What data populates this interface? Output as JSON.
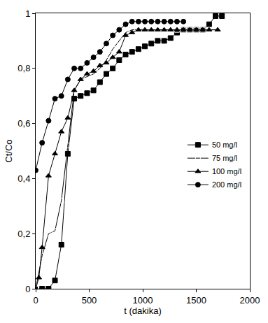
{
  "chart_data": {
    "type": "line",
    "x_label": "t (dakika)",
    "y_label": "Ct/Co",
    "xlim": [
      0,
      2000
    ],
    "ylim": [
      0,
      1
    ],
    "xticks": [
      0,
      500,
      1000,
      1500,
      2000
    ],
    "yticks": [
      0,
      {
        "value": 0.2,
        "label": "0,2"
      },
      {
        "value": 0.4,
        "label": "0,4"
      },
      {
        "value": 0.6,
        "label": "0,6"
      },
      {
        "value": 0.8,
        "label": "0,8"
      },
      1
    ],
    "grid": false,
    "legend": "right",
    "series": [
      {
        "name": "50 mg/l",
        "color": "#000000",
        "marker": "square",
        "x": [
          0,
          60,
          120,
          180,
          240,
          300,
          360,
          420,
          480,
          540,
          600,
          660,
          720,
          780,
          840,
          900,
          960,
          1020,
          1080,
          1140,
          1200,
          1260,
          1320,
          1380,
          1440,
          1500,
          1560,
          1620,
          1680,
          1740
        ],
        "values": [
          0,
          0,
          0,
          0.03,
          0.16,
          0.49,
          0.69,
          0.7,
          0.71,
          0.72,
          0.75,
          0.78,
          0.8,
          0.83,
          0.85,
          0.86,
          0.87,
          0.88,
          0.89,
          0.9,
          0.9,
          0.91,
          0.93,
          0.94,
          0.94,
          0.94,
          0.94,
          0.96,
          0.99,
          0.99
        ]
      },
      {
        "name": "75 mg/l",
        "color": "#000000",
        "marker": "square-open",
        "x": [
          0,
          60,
          120,
          180,
          240,
          300,
          360,
          420,
          480,
          540,
          600,
          660,
          720,
          780,
          840,
          900,
          960,
          1020,
          1080,
          1140,
          1200,
          1260,
          1320,
          1380,
          1440,
          1500,
          1560,
          1620,
          1680
        ],
        "values": [
          0,
          0.12,
          0.2,
          0.21,
          0.32,
          0.52,
          0.72,
          0.76,
          0.77,
          0.78,
          0.8,
          0.83,
          0.87,
          0.9,
          0.93,
          0.94,
          0.94,
          0.94,
          0.94,
          0.94,
          0.94,
          0.94,
          0.94,
          0.94,
          0.94,
          0.94,
          0.94,
          0.94,
          0.94
        ]
      },
      {
        "name": "100 mg/l",
        "color": "#000000",
        "marker": "triangle-up",
        "x": [
          0,
          30,
          60,
          120,
          180,
          240,
          300,
          360,
          420,
          480,
          540,
          600,
          660,
          720,
          780,
          840,
          900,
          960,
          1020,
          1080,
          1140,
          1200,
          1260,
          1320,
          1380,
          1440,
          1500,
          1560,
          1620,
          1700
        ],
        "values": [
          0,
          0.04,
          0.15,
          0.41,
          0.49,
          0.57,
          0.62,
          0.72,
          0.76,
          0.78,
          0.79,
          0.81,
          0.82,
          0.84,
          0.86,
          0.92,
          0.93,
          0.94,
          0.94,
          0.94,
          0.94,
          0.94,
          0.94,
          0.94,
          0.94,
          0.94,
          0.94,
          0.94,
          0.94,
          0.94
        ]
      },
      {
        "name": "200 mg/l",
        "color": "#000000",
        "marker": "circle",
        "x": [
          0,
          60,
          120,
          180,
          240,
          300,
          360,
          420,
          480,
          540,
          600,
          660,
          720,
          780,
          840,
          900,
          960,
          1020,
          1080,
          1140,
          1200,
          1260,
          1320,
          1380
        ],
        "values": [
          0.43,
          0.53,
          0.61,
          0.69,
          0.7,
          0.76,
          0.8,
          0.8,
          0.82,
          0.84,
          0.86,
          0.89,
          0.92,
          0.94,
          0.96,
          0.97,
          0.97,
          0.97,
          0.97,
          0.97,
          0.97,
          0.97,
          0.97,
          0.97
        ]
      }
    ]
  }
}
